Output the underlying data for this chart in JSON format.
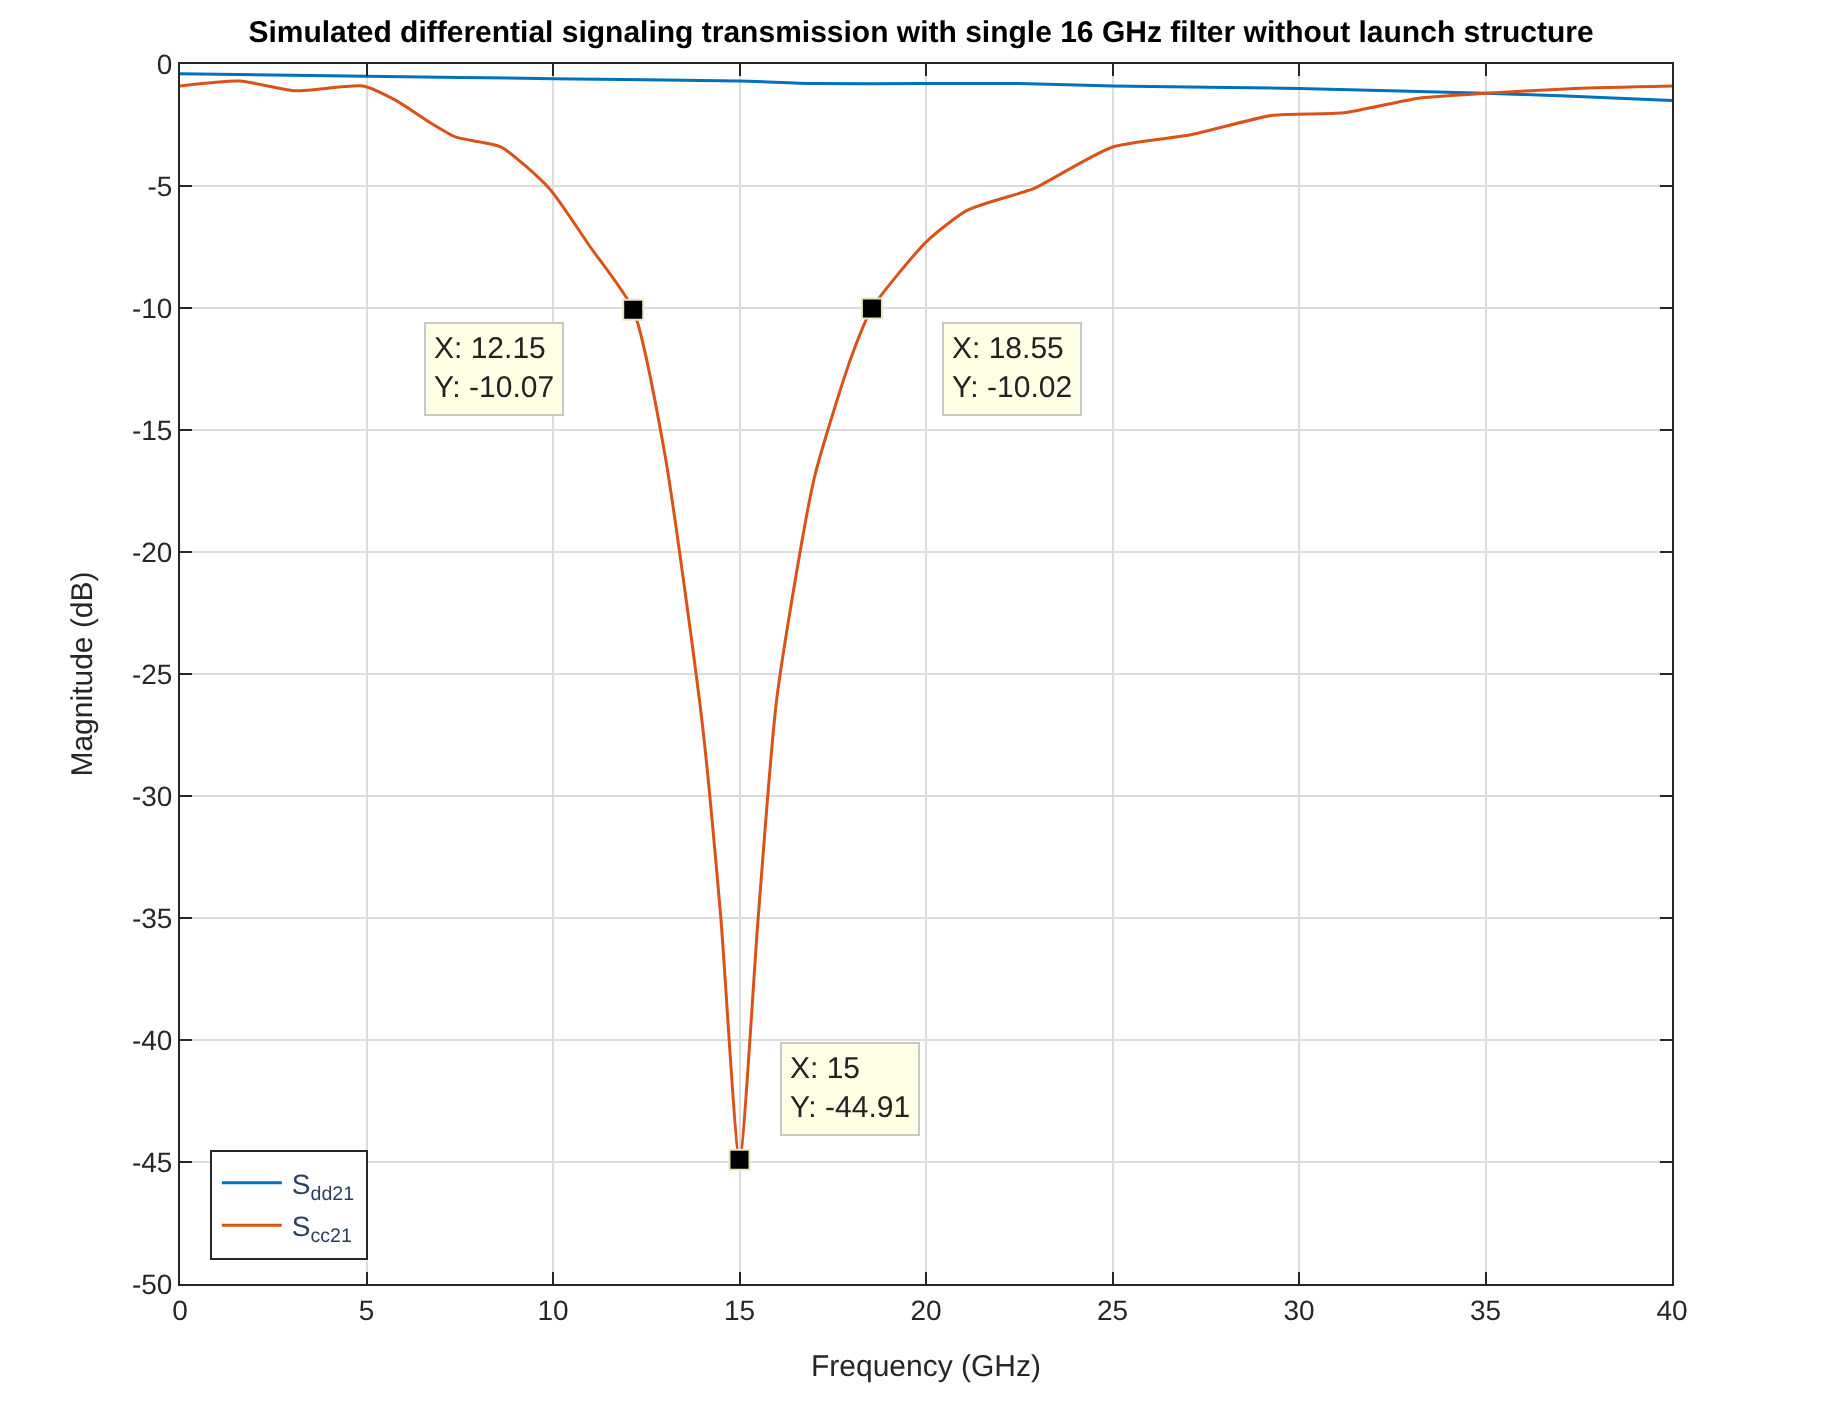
{
  "chart_data": {
    "type": "line",
    "title": "Simulated differential signaling transmission with single 16 GHz filter without launch structure",
    "xlabel": "Frequency (GHz)",
    "ylabel": "Magnitude (dB)",
    "xlim": [
      0,
      40
    ],
    "xticks": [
      0,
      5,
      10,
      15,
      20,
      25,
      30,
      35,
      40
    ],
    "ylim": [
      -50,
      0
    ],
    "yticks": [
      -50,
      -45,
      -40,
      -35,
      -30,
      -25,
      -20,
      -15,
      -10,
      -5,
      0
    ],
    "grid": true,
    "legend": "bottom left",
    "line_style": "solid",
    "marker": "none",
    "series": [
      {
        "name": "S$_{dd21}$",
        "color": "#0072bd",
        "x": [
          0,
          5,
          10,
          15,
          17,
          20,
          22.5,
          25,
          30,
          35,
          37,
          40
        ],
        "values": [
          -0.4,
          -0.5,
          -0.6,
          -0.7,
          -0.8,
          -0.8,
          -0.8,
          -0.9,
          -1.0,
          -1.2,
          -1.3,
          -1.5
        ]
      },
      {
        "name": "S$_{cc21}$",
        "color": "#d95319",
        "x": [
          0,
          1.6,
          3.1,
          4.9,
          5.8,
          6.7,
          7.4,
          8.6,
          9.9,
          11,
          12.15,
          13,
          14,
          14.5,
          15,
          15.5,
          16,
          17,
          18,
          18.55,
          20,
          21.1,
          22.5,
          22.9,
          25,
          27.1,
          29.3,
          31.2,
          33.2,
          35,
          37.4,
          40
        ],
        "values": [
          -0.9,
          -0.7,
          -1.1,
          -0.9,
          -1.5,
          -2.4,
          -3.0,
          -3.4,
          -5.1,
          -7.5,
          -10.07,
          -16,
          -27,
          -35,
          -44.91,
          -35,
          -26,
          -17,
          -12,
          -10.02,
          -7.3,
          -6.0,
          -5.3,
          -5.1,
          -3.4,
          -2.9,
          -2.1,
          -2.0,
          -1.4,
          -1.2,
          -1.0,
          -0.9
        ]
      },
      {
        "type": "scatter",
        "marker": "square",
        "color": "#000000",
        "x": [
          12.15,
          18.55,
          15
        ],
        "values": [
          -10.07,
          -10.02,
          -44.91
        ]
      }
    ],
    "annotations": [
      {
        "text": "X: 12.15\nY: -10.07",
        "x": 12.15,
        "y": -10.07
      },
      {
        "text": "X: 18.55\nY: -10.02",
        "x": 18.55,
        "y": -10.02
      },
      {
        "text": "X: 15\nY: -44.91",
        "x": 15,
        "y": -44.91
      }
    ]
  }
}
